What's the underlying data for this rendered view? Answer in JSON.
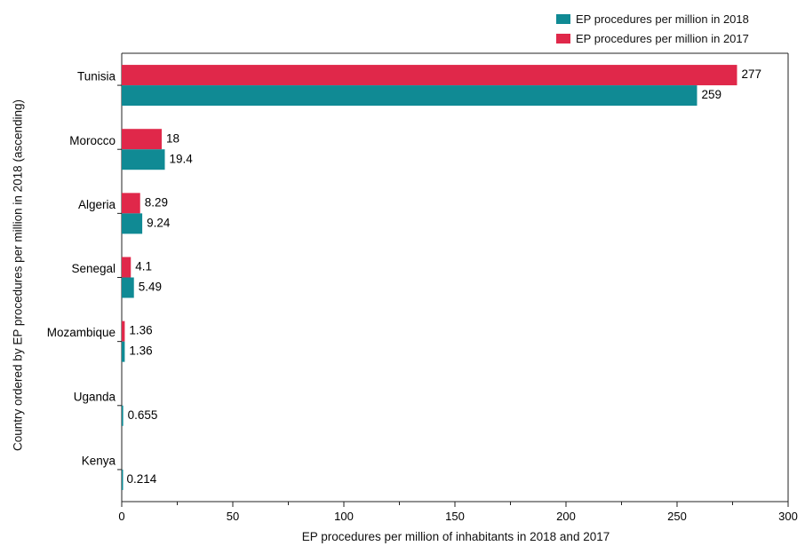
{
  "chart_data": {
    "type": "bar",
    "orientation": "horizontal",
    "categories": [
      "Tunisia",
      "Morocco",
      "Algeria",
      "Senegal",
      "Mozambique",
      "Uganda",
      "Kenya"
    ],
    "series": [
      {
        "name": "EP procedures per million in 2017",
        "color": "#e0284a",
        "values": [
          277,
          18,
          8.29,
          4.1,
          1.36,
          null,
          null
        ]
      },
      {
        "name": "EP procedures per million in 2018",
        "color": "#108a94",
        "values": [
          259,
          19.4,
          9.24,
          5.49,
          1.36,
          0.655,
          0.214
        ]
      }
    ],
    "xlabel": "EP procedures per million of inhabitants in 2018 and 2017",
    "ylabel": "Country ordered by EP procedures per million in 2018 (ascending)",
    "xlim": [
      0,
      300
    ],
    "xticks": [
      0,
      50,
      100,
      150,
      200,
      250,
      300
    ],
    "grid": false,
    "legend_position": "top-right"
  },
  "legend": {
    "item_2018": "EP procedures per million in 2018",
    "item_2017": "EP procedures per million in 2017"
  }
}
